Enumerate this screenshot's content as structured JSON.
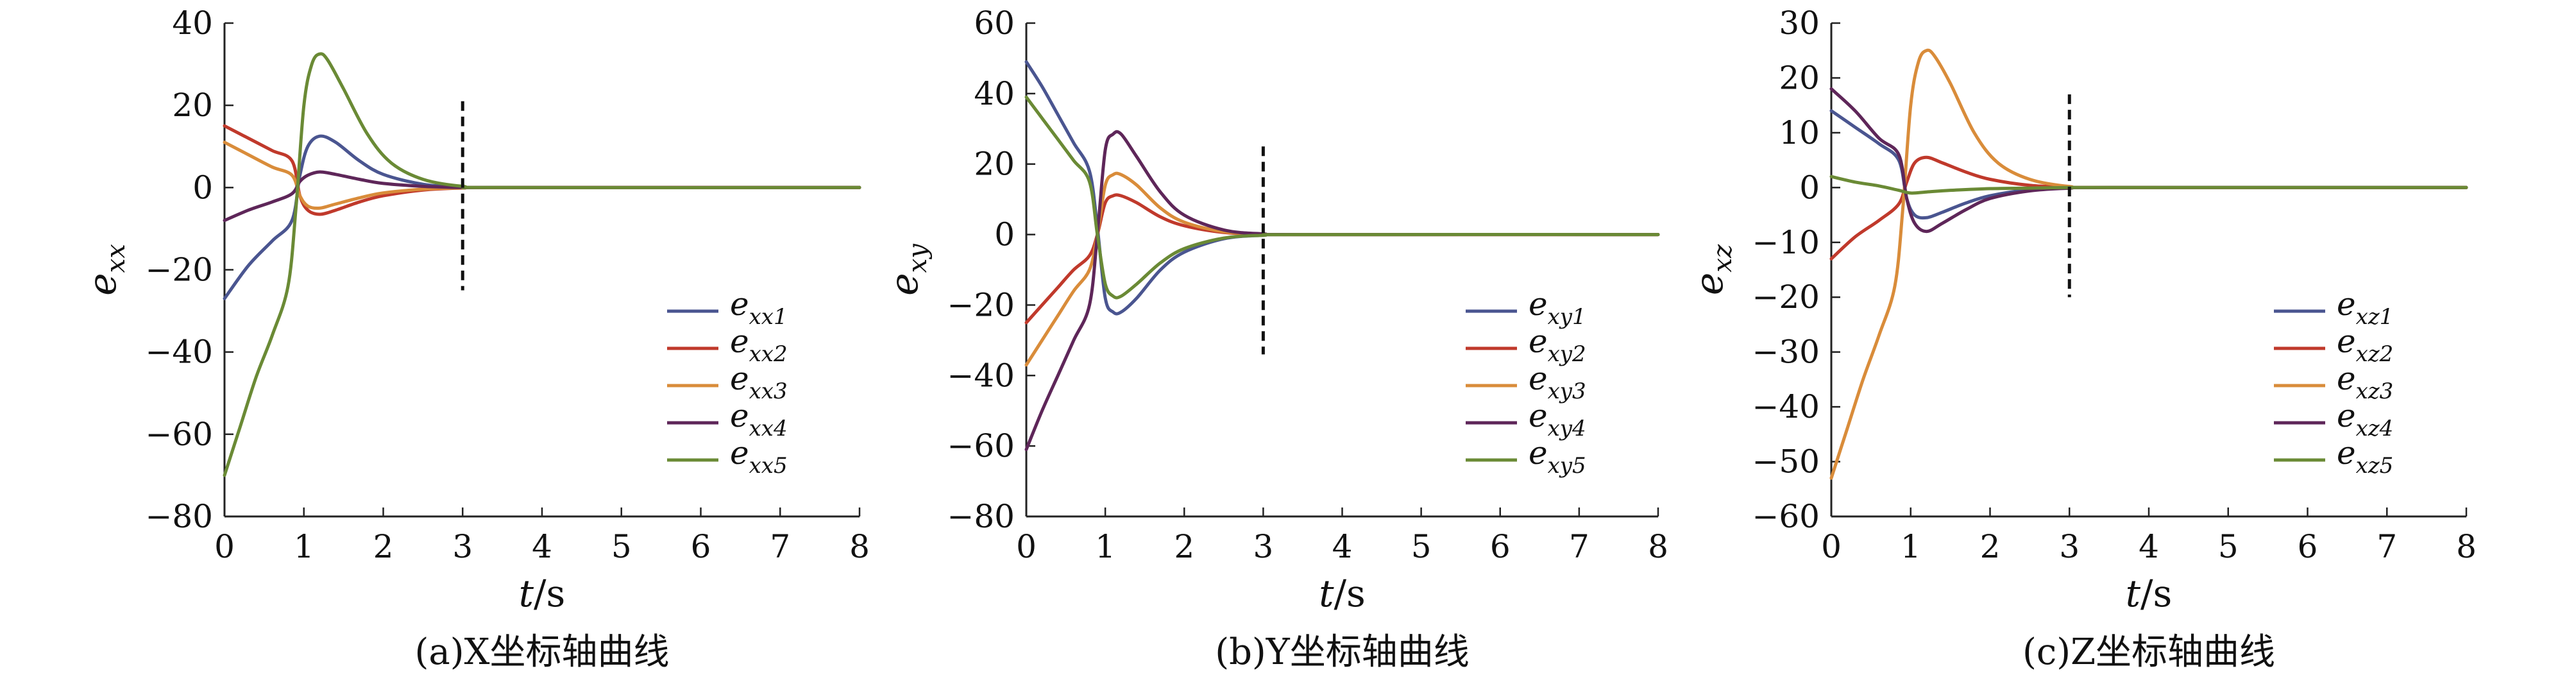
{
  "chart_data": [
    {
      "type": "line",
      "caption": "(a)X坐标轴曲线",
      "xlabel": "t/s",
      "ylabel_base": "e",
      "ylabel_sub": "xx",
      "xlim": [
        0,
        8
      ],
      "ylim": [
        -80,
        40
      ],
      "xticks": [
        0,
        1,
        2,
        3,
        4,
        5,
        6,
        7,
        8
      ],
      "yticks": [
        40,
        20,
        0,
        -20,
        -40,
        -60,
        -80
      ],
      "vline_x": 3,
      "vline_range": [
        -25,
        21
      ],
      "grid": false,
      "legend_position": "right-center",
      "series": [
        {
          "name_base": "e",
          "name_sub": "xx1",
          "color": "#4a5590",
          "x": [
            0,
            0.3,
            0.6,
            0.85,
            0.95,
            1.05,
            1.2,
            1.4,
            1.7,
            2.0,
            2.5,
            3.0,
            3.5,
            8
          ],
          "y": [
            -27,
            -19,
            -13,
            -8,
            3,
            10,
            12.5,
            11,
            6.5,
            3.2,
            0.8,
            0.1,
            0,
            0
          ]
        },
        {
          "name_base": "e",
          "name_sub": "xx2",
          "color": "#c0392b",
          "x": [
            0,
            0.3,
            0.6,
            0.85,
            0.95,
            1.05,
            1.2,
            1.4,
            1.7,
            2.0,
            2.5,
            3.0,
            3.5,
            8
          ],
          "y": [
            15,
            12,
            9,
            6.5,
            -2,
            -5.5,
            -6.5,
            -5.5,
            -3.5,
            -2,
            -0.6,
            -0.1,
            0,
            0
          ]
        },
        {
          "name_base": "e",
          "name_sub": "xx3",
          "color": "#d98c3a",
          "x": [
            0,
            0.3,
            0.6,
            0.85,
            0.95,
            1.05,
            1.2,
            1.4,
            1.7,
            2.0,
            2.5,
            3.0,
            3.5,
            8
          ],
          "y": [
            11,
            8,
            5,
            3,
            -2,
            -4.5,
            -5,
            -4,
            -2.5,
            -1.3,
            -0.4,
            -0.1,
            0,
            0
          ]
        },
        {
          "name_base": "e",
          "name_sub": "xx4",
          "color": "#5e2659",
          "x": [
            0,
            0.3,
            0.6,
            0.85,
            0.95,
            1.05,
            1.2,
            1.4,
            1.7,
            2.0,
            2.5,
            3.0,
            3.5,
            8
          ],
          "y": [
            -8,
            -5.5,
            -3.5,
            -1.5,
            1.5,
            3,
            3.8,
            3.2,
            2,
            1,
            0.3,
            0,
            0,
            0
          ]
        },
        {
          "name_base": "e",
          "name_sub": "xx5",
          "color": "#6a8a35",
          "x": [
            0,
            0.2,
            0.4,
            0.6,
            0.8,
            0.9,
            1.0,
            1.1,
            1.2,
            1.3,
            1.5,
            1.8,
            2.1,
            2.5,
            3.0,
            3.5,
            8
          ],
          "y": [
            -70,
            -58,
            -46,
            -36,
            -24,
            -5,
            20,
            30,
            32.5,
            31,
            24,
            13,
            6,
            2,
            0.3,
            0,
            0
          ]
        }
      ]
    },
    {
      "type": "line",
      "caption": "(b)Y坐标轴曲线",
      "xlabel": "t/s",
      "ylabel_base": "e",
      "ylabel_sub": "xy",
      "xlim": [
        0,
        8
      ],
      "ylim": [
        -80,
        60
      ],
      "xticks": [
        0,
        1,
        2,
        3,
        4,
        5,
        6,
        7,
        8
      ],
      "yticks": [
        60,
        40,
        20,
        0,
        -20,
        -40,
        -60,
        -80
      ],
      "vline_x": 3,
      "vline_range": [
        -34,
        25
      ],
      "grid": false,
      "legend_position": "right-center",
      "series": [
        {
          "name_base": "e",
          "name_sub": "xy1",
          "color": "#4a5590",
          "x": [
            0,
            0.2,
            0.4,
            0.6,
            0.8,
            0.9,
            1.0,
            1.1,
            1.2,
            1.4,
            1.7,
            2.0,
            2.5,
            3.0,
            3.5,
            8
          ],
          "y": [
            49,
            42,
            34,
            26,
            18,
            2,
            -18,
            -22,
            -22,
            -18,
            -10,
            -5,
            -1.2,
            -0.2,
            0,
            0
          ]
        },
        {
          "name_base": "e",
          "name_sub": "xy2",
          "color": "#c0392b",
          "x": [
            0,
            0.2,
            0.4,
            0.6,
            0.8,
            0.9,
            1.0,
            1.1,
            1.2,
            1.4,
            1.7,
            2.0,
            2.5,
            3.0,
            3.5,
            8
          ],
          "y": [
            -25,
            -20,
            -15,
            -10,
            -6,
            0,
            9,
            11,
            11,
            9,
            5,
            2.5,
            0.6,
            0.1,
            0,
            0
          ]
        },
        {
          "name_base": "e",
          "name_sub": "xy3",
          "color": "#d98c3a",
          "x": [
            0,
            0.2,
            0.4,
            0.6,
            0.8,
            0.9,
            1.0,
            1.1,
            1.2,
            1.4,
            1.7,
            2.0,
            2.5,
            3.0,
            3.5,
            8
          ],
          "y": [
            -37,
            -30,
            -23,
            -16,
            -10,
            0,
            14,
            17,
            17,
            14,
            7.5,
            3.5,
            0.8,
            0.1,
            0,
            0
          ]
        },
        {
          "name_base": "e",
          "name_sub": "xy4",
          "color": "#5e2659",
          "x": [
            0,
            0.2,
            0.4,
            0.6,
            0.8,
            0.9,
            1.0,
            1.1,
            1.2,
            1.4,
            1.7,
            2.0,
            2.5,
            3.0,
            3.5,
            8
          ],
          "y": [
            -61,
            -50,
            -40,
            -30,
            -20,
            0,
            24,
            28.5,
            28.5,
            22,
            12,
            5.5,
            1.3,
            0.2,
            0,
            0
          ]
        },
        {
          "name_base": "e",
          "name_sub": "xy5",
          "color": "#6a8a35",
          "x": [
            0,
            0.2,
            0.4,
            0.6,
            0.8,
            0.9,
            1.0,
            1.1,
            1.2,
            1.4,
            1.7,
            2.0,
            2.5,
            3.0,
            3.5,
            8
          ],
          "y": [
            39,
            33,
            27,
            21,
            15,
            0,
            -14,
            -17.5,
            -17.5,
            -14,
            -8,
            -4,
            -1,
            -0.2,
            0,
            0
          ]
        }
      ]
    },
    {
      "type": "line",
      "caption": "(c)Z坐标轴曲线",
      "xlabel": "t/s",
      "ylabel_base": "e",
      "ylabel_sub": "xz",
      "xlim": [
        0,
        8
      ],
      "ylim": [
        -60,
        30
      ],
      "xticks": [
        0,
        1,
        2,
        3,
        4,
        5,
        6,
        7,
        8
      ],
      "yticks": [
        30,
        20,
        10,
        0,
        -10,
        -20,
        -30,
        -40,
        -50,
        -60
      ],
      "vline_x": 3,
      "vline_range": [
        -20,
        17
      ],
      "grid": false,
      "legend_position": "right-center",
      "series": [
        {
          "name_base": "e",
          "name_sub": "xz1",
          "color": "#4a5590",
          "x": [
            0,
            0.3,
            0.6,
            0.85,
            0.95,
            1.05,
            1.2,
            1.4,
            1.7,
            2.0,
            2.5,
            3.0,
            3.5,
            8
          ],
          "y": [
            14,
            11,
            8,
            5,
            -2,
            -5,
            -5.5,
            -4.5,
            -2.8,
            -1.5,
            -0.4,
            -0.1,
            0,
            0
          ]
        },
        {
          "name_base": "e",
          "name_sub": "xz2",
          "color": "#c0392b",
          "x": [
            0,
            0.3,
            0.6,
            0.85,
            0.95,
            1.05,
            1.2,
            1.4,
            1.7,
            2.0,
            2.5,
            3.0,
            3.5,
            8
          ],
          "y": [
            -13,
            -9,
            -6,
            -3,
            1,
            4.5,
            5.5,
            4.5,
            2.8,
            1.5,
            0.4,
            0.1,
            0,
            0
          ]
        },
        {
          "name_base": "e",
          "name_sub": "xz3",
          "color": "#d98c3a",
          "x": [
            0,
            0.2,
            0.4,
            0.6,
            0.8,
            0.9,
            1.0,
            1.1,
            1.2,
            1.3,
            1.5,
            1.8,
            2.1,
            2.5,
            3.0,
            3.5,
            8
          ],
          "y": [
            -53,
            -44,
            -35,
            -27,
            -18,
            -4,
            15,
            23,
            25,
            24,
            19,
            10,
            4.5,
            1.5,
            0.2,
            0,
            0
          ]
        },
        {
          "name_base": "e",
          "name_sub": "xz4",
          "color": "#5e2659",
          "x": [
            0,
            0.3,
            0.6,
            0.85,
            0.95,
            1.05,
            1.2,
            1.4,
            1.7,
            2.0,
            2.5,
            3.0,
            3.5,
            8
          ],
          "y": [
            18,
            14,
            9,
            6,
            -2,
            -6.5,
            -8,
            -6.5,
            -4,
            -2,
            -0.6,
            -0.1,
            0,
            0
          ]
        },
        {
          "name_base": "e",
          "name_sub": "xz5",
          "color": "#6a8a35",
          "x": [
            0,
            0.3,
            0.6,
            0.85,
            1.0,
            1.2,
            1.5,
            2.0,
            2.5,
            3.0,
            3.5,
            8
          ],
          "y": [
            2,
            1,
            0.3,
            -0.5,
            -1,
            -0.8,
            -0.5,
            -0.2,
            -0.1,
            0,
            0,
            0
          ]
        }
      ]
    }
  ]
}
